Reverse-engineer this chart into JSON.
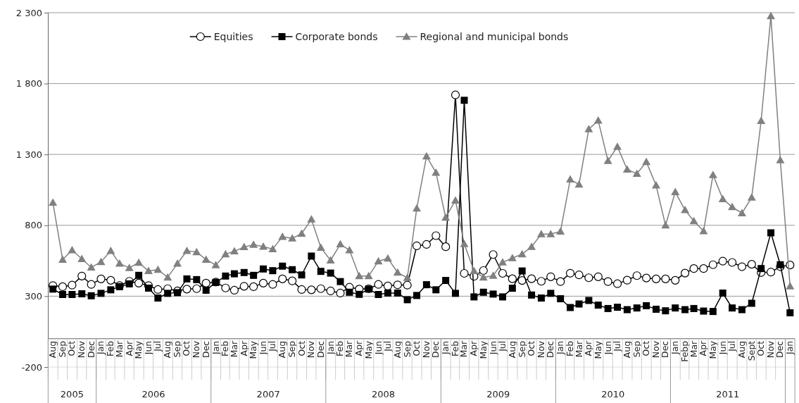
{
  "chart_data": {
    "type": "line",
    "legend": "top",
    "grid": "y",
    "line_style": "solid",
    "annotations": [
      "2005",
      "2006",
      "2007",
      "2008",
      "2009",
      "2010",
      "2011"
    ],
    "x": [
      "2005-08",
      "2005-09",
      "2005-10",
      "2005-11",
      "2005-12",
      "2006-01",
      "2006-02",
      "2006-03",
      "2006-04",
      "2006-05",
      "2006-06",
      "2006-07",
      "2006-08",
      "2006-09",
      "2006-10",
      "2006-11",
      "2006-12",
      "2007-01",
      "2007-02",
      "2007-03",
      "2007-04",
      "2007-05",
      "2007-06",
      "2007-07",
      "2007-08",
      "2007-09",
      "2007-10",
      "2007-11",
      "2007-12",
      "2008-01",
      "2008-02",
      "2008-03",
      "2008-04",
      "2008-05",
      "2008-06",
      "2008-07",
      "2008-08",
      "2008-09",
      "2008-10",
      "2008-11",
      "2008-12",
      "2009-01",
      "2009-02",
      "2009-03",
      "2009-04",
      "2009-05",
      "2009-06",
      "2009-07",
      "2009-08",
      "2009-09",
      "2009-10",
      "2009-11",
      "2009-12",
      "2010-01",
      "2010-02",
      "2010-03",
      "2010-04",
      "2010-05",
      "2010-06",
      "2010-07",
      "2010-08",
      "2010-09",
      "2010-10",
      "2010-11",
      "2010-12",
      "2011-01",
      "2011-02",
      "2011-03",
      "2011-04",
      "2011-05",
      "2011-06",
      "2011-07",
      "2011-08",
      "2011-09",
      "2011-10",
      "2011-11",
      "2011-12",
      "2012-01"
    ],
    "xlim": [
      "2005-07-16",
      "2012-01-16"
    ],
    "xticks": [
      {
        "value": "2005-08",
        "label": "Aug"
      },
      {
        "value": "2005-09",
        "label": "Sep"
      },
      {
        "value": "2005-10",
        "label": "Oct"
      },
      {
        "value": "2005-11",
        "label": "Nov"
      },
      {
        "value": "2005-12",
        "label": "Dec"
      },
      {
        "value": "2006-01",
        "label": "Jan"
      },
      {
        "value": "2006-02",
        "label": "Feb"
      },
      {
        "value": "2006-03",
        "label": "Mar"
      },
      {
        "value": "2006-04",
        "label": "Apr"
      },
      {
        "value": "2006-05",
        "label": "May"
      },
      {
        "value": "2006-06",
        "label": "Jun"
      },
      {
        "value": "2006-07",
        "label": "Jul"
      },
      {
        "value": "2006-08",
        "label": "Aug"
      },
      {
        "value": "2006-09",
        "label": "Sep"
      },
      {
        "value": "2006-10",
        "label": "Oct"
      },
      {
        "value": "2006-11",
        "label": "Nov"
      },
      {
        "value": "2006-12",
        "label": "Dec"
      },
      {
        "value": "2007-01",
        "label": "Jan"
      },
      {
        "value": "2007-02",
        "label": "Feb"
      },
      {
        "value": "2007-03",
        "label": "Mar"
      },
      {
        "value": "2007-04",
        "label": "Apr"
      },
      {
        "value": "2007-05",
        "label": "May"
      },
      {
        "value": "2007-06",
        "label": "Jun"
      },
      {
        "value": "2007-07",
        "label": "Jul"
      },
      {
        "value": "2007-08",
        "label": "Aug"
      },
      {
        "value": "2007-09",
        "label": "Sep"
      },
      {
        "value": "2007-10",
        "label": "Oct"
      },
      {
        "value": "2007-11",
        "label": "Nov"
      },
      {
        "value": "2007-12",
        "label": "Dec"
      },
      {
        "value": "2008-01",
        "label": "Jan"
      },
      {
        "value": "2008-02",
        "label": "Feb"
      },
      {
        "value": "2008-03",
        "label": "Mar"
      },
      {
        "value": "2008-04",
        "label": "Apr"
      },
      {
        "value": "2008-05",
        "label": "May"
      },
      {
        "value": "2008-06",
        "label": "Jun"
      },
      {
        "value": "2008-07",
        "label": "Jul"
      },
      {
        "value": "2008-08",
        "label": "Aug"
      },
      {
        "value": "2008-09",
        "label": "Sep"
      },
      {
        "value": "2008-10",
        "label": "Oct"
      },
      {
        "value": "2008-11",
        "label": "Nov"
      },
      {
        "value": "2008-12",
        "label": "Dec"
      },
      {
        "value": "2009-01",
        "label": "Jan"
      },
      {
        "value": "2009-02",
        "label": "Feb"
      },
      {
        "value": "2009-03",
        "label": "Mar"
      },
      {
        "value": "2009-04",
        "label": "Apr"
      },
      {
        "value": "2009-05",
        "label": "May"
      },
      {
        "value": "2009-06",
        "label": "Jun"
      },
      {
        "value": "2009-07",
        "label": "Jul"
      },
      {
        "value": "2009-08",
        "label": "Aug"
      },
      {
        "value": "2009-09",
        "label": "Sep"
      },
      {
        "value": "2009-10",
        "label": "Oct"
      },
      {
        "value": "2009-11",
        "label": "Nov"
      },
      {
        "value": "2009-12",
        "label": "Dec"
      },
      {
        "value": "2010-01",
        "label": "Jan"
      },
      {
        "value": "2010-02",
        "label": "Feb"
      },
      {
        "value": "2010-03",
        "label": "Mar"
      },
      {
        "value": "2010-04",
        "label": "Apr"
      },
      {
        "value": "2010-05",
        "label": "May"
      },
      {
        "value": "2010-06",
        "label": "Jun"
      },
      {
        "value": "2010-07",
        "label": "Jul"
      },
      {
        "value": "2010-08",
        "label": "Aug"
      },
      {
        "value": "2010-09",
        "label": "Sep"
      },
      {
        "value": "2010-10",
        "label": "Oct"
      },
      {
        "value": "2010-11",
        "label": "Nov"
      },
      {
        "value": "2010-12",
        "label": "Dec"
      },
      {
        "value": "2011-01",
        "label": "Jan"
      },
      {
        "value": "2011-02",
        "label": "Febp"
      },
      {
        "value": "2011-03",
        "label": "Mar"
      },
      {
        "value": "2011-04",
        "label": "Apr"
      },
      {
        "value": "2011-05",
        "label": "May"
      },
      {
        "value": "2011-06",
        "label": "Jun"
      },
      {
        "value": "2011-07",
        "label": "Jul"
      },
      {
        "value": "2011-08",
        "label": "Aug"
      },
      {
        "value": "2011-09",
        "label": "Sept"
      },
      {
        "value": "2011-10",
        "label": "Oct"
      },
      {
        "value": "2011-11",
        "label": "Nov"
      },
      {
        "value": "2011-12",
        "label": "Dec"
      },
      {
        "value": "2012-01",
        "label": "Jan"
      }
    ],
    "ylim": [
      -200,
      2300
    ],
    "yticks": [
      -200,
      300,
      800,
      {
        "value": 1300,
        "label": "1 300"
      },
      {
        "value": 1800,
        "label": "1 800"
      },
      {
        "value": 2300,
        "label": "2 300"
      }
    ],
    "series": [
      {
        "name": "Equities",
        "color": "#000000",
        "marker": "circle",
        "values": [
          375,
          367,
          378,
          442,
          383,
          422,
          412,
          375,
          405,
          392,
          375,
          347,
          353,
          337,
          350,
          353,
          392,
          400,
          358,
          342,
          370,
          367,
          392,
          383,
          422,
          408,
          347,
          345,
          353,
          337,
          322,
          363,
          350,
          353,
          383,
          372,
          380,
          378,
          655,
          665,
          727,
          649,
          1720,
          461,
          440,
          481,
          594,
          461,
          423,
          411,
          423,
          405,
          437,
          403,
          462,
          450,
          430,
          437,
          403,
          388,
          413,
          445,
          428,
          422,
          422,
          412,
          463,
          495,
          495,
          522,
          547,
          538,
          508,
          525,
          467,
          470,
          508,
          520
        ]
      },
      {
        "name": "Corporate bonds",
        "color": "#000000",
        "marker": "square",
        "values": [
          350,
          312,
          312,
          317,
          303,
          320,
          345,
          367,
          387,
          447,
          357,
          287,
          320,
          325,
          422,
          417,
          342,
          397,
          442,
          458,
          467,
          447,
          492,
          480,
          512,
          487,
          450,
          583,
          475,
          463,
          403,
          328,
          313,
          350,
          312,
          322,
          322,
          275,
          305,
          381,
          345,
          411,
          320,
          1682,
          295,
          328,
          315,
          295,
          356,
          478,
          308,
          287,
          320,
          282,
          220,
          245,
          270,
          237,
          213,
          222,
          205,
          217,
          233,
          208,
          197,
          217,
          205,
          213,
          195,
          192,
          322,
          217,
          205,
          250,
          495,
          747,
          522,
          183
        ]
      },
      {
        "name": "Regional and municipal bonds",
        "color": "#808080",
        "marker": "triangle",
        "values": [
          960,
          558,
          625,
          563,
          503,
          542,
          620,
          530,
          500,
          537,
          478,
          487,
          433,
          530,
          620,
          612,
          558,
          520,
          597,
          617,
          647,
          663,
          650,
          633,
          720,
          708,
          742,
          842,
          642,
          553,
          667,
          625,
          442,
          442,
          547,
          567,
          467,
          430,
          920,
          1287,
          1172,
          855,
          976,
          669,
          478,
          433,
          445,
          539,
          569,
          597,
          649,
          738,
          738,
          757,
          1124,
          1088,
          1479,
          1539,
          1255,
          1355,
          1194,
          1164,
          1247,
          1082,
          800,
          1035,
          908,
          830,
          759,
          1156,
          986,
          929,
          886,
          996,
          1537,
          2277,
          1260,
          370
        ]
      }
    ]
  }
}
